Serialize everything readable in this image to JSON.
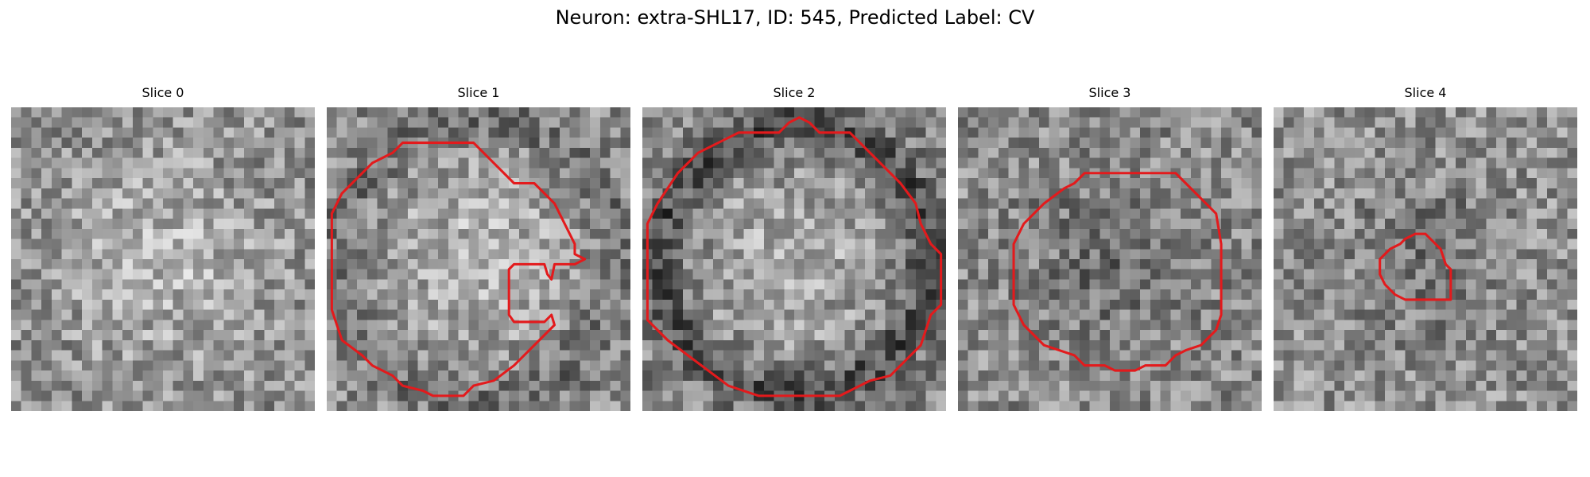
{
  "figure": {
    "title": "Neuron: extra-SHL17, ID: 545, Predicted Label: CV",
    "contour_color": "#e31a1c",
    "colormap": "gray",
    "grid_size": 30
  },
  "slices": [
    {
      "title": "Slice 0",
      "image": {
        "center_brightness": "bright",
        "ring": "none",
        "mean_gray": 0.56
      },
      "contour": []
    },
    {
      "title": "Slice 1",
      "image": {
        "center_brightness": "bright",
        "ring": "faint dark ring",
        "mean_gray": 0.55
      },
      "contour": [
        [
          0.5,
          10.5
        ],
        [
          1.5,
          8.5
        ],
        [
          4.5,
          5.5
        ],
        [
          6.5,
          4.5
        ],
        [
          7.5,
          3.5
        ],
        [
          14.5,
          3.5
        ],
        [
          16.5,
          5.5
        ],
        [
          18.5,
          7.5
        ],
        [
          20.5,
          7.5
        ],
        [
          22.5,
          9.5
        ],
        [
          23.5,
          11.5
        ],
        [
          24.5,
          13.5
        ],
        [
          24.5,
          14.5
        ],
        [
          25.5,
          15.0
        ],
        [
          24.5,
          15.5
        ],
        [
          22.5,
          15.5
        ],
        [
          22.2,
          17.0
        ],
        [
          21.8,
          16.5
        ],
        [
          21.5,
          15.5
        ],
        [
          18.5,
          15.5
        ],
        [
          18.0,
          16.0
        ],
        [
          18.0,
          20.5
        ],
        [
          18.5,
          21.2
        ],
        [
          21.5,
          21.2
        ],
        [
          22.2,
          20.5
        ],
        [
          22.5,
          21.5
        ],
        [
          21.5,
          22.5
        ],
        [
          20.5,
          23.5
        ],
        [
          19.5,
          24.5
        ],
        [
          18.5,
          25.5
        ],
        [
          16.5,
          27.0
        ],
        [
          14.5,
          27.5
        ],
        [
          13.5,
          28.5
        ],
        [
          10.5,
          28.5
        ],
        [
          9.5,
          28.0
        ],
        [
          7.5,
          27.5
        ],
        [
          6.5,
          26.5
        ],
        [
          4.5,
          25.5
        ],
        [
          3.5,
          24.5
        ],
        [
          1.5,
          23.0
        ],
        [
          0.5,
          20.0
        ]
      ]
    },
    {
      "title": "Slice 2",
      "image": {
        "center_brightness": "bright",
        "ring": "dark ring",
        "mean_gray": 0.52
      },
      "contour": [
        [
          0.5,
          11.5
        ],
        [
          1.5,
          9.5
        ],
        [
          3.5,
          6.5
        ],
        [
          5.5,
          4.5
        ],
        [
          7.5,
          3.5
        ],
        [
          9.5,
          2.5
        ],
        [
          13.5,
          2.5
        ],
        [
          14.5,
          1.5
        ],
        [
          15.5,
          1.0
        ],
        [
          16.5,
          1.5
        ],
        [
          17.5,
          2.5
        ],
        [
          20.5,
          2.5
        ],
        [
          21.5,
          3.5
        ],
        [
          22.5,
          4.5
        ],
        [
          24.5,
          6.5
        ],
        [
          25.5,
          7.5
        ],
        [
          27.0,
          9.5
        ],
        [
          27.5,
          11.5
        ],
        [
          28.5,
          13.5
        ],
        [
          29.0,
          14.0
        ],
        [
          29.5,
          14.5
        ],
        [
          29.5,
          19.5
        ],
        [
          28.5,
          20.5
        ],
        [
          27.5,
          23.5
        ],
        [
          25.5,
          25.5
        ],
        [
          24.5,
          26.5
        ],
        [
          22.5,
          27.0
        ],
        [
          21.5,
          27.5
        ],
        [
          20.5,
          28.0
        ],
        [
          19.5,
          28.5
        ],
        [
          11.5,
          28.5
        ],
        [
          8.5,
          27.5
        ],
        [
          6.5,
          26.0
        ],
        [
          4.5,
          24.5
        ],
        [
          2.5,
          23.0
        ],
        [
          0.5,
          21.0
        ]
      ]
    },
    {
      "title": "Slice 3",
      "image": {
        "center_brightness": "dark",
        "ring": "none",
        "mean_gray": 0.55
      },
      "contour": [
        [
          5.5,
          13.5
        ],
        [
          6.5,
          11.5
        ],
        [
          8.5,
          9.5
        ],
        [
          10.5,
          8.0
        ],
        [
          11.5,
          7.5
        ],
        [
          12.5,
          6.5
        ],
        [
          21.5,
          6.5
        ],
        [
          22.5,
          7.5
        ],
        [
          23.5,
          8.5
        ],
        [
          24.5,
          9.5
        ],
        [
          25.5,
          10.5
        ],
        [
          26.0,
          13.5
        ],
        [
          26.0,
          20.5
        ],
        [
          25.5,
          22.0
        ],
        [
          24.0,
          23.5
        ],
        [
          22.5,
          24.0
        ],
        [
          21.5,
          24.5
        ],
        [
          20.5,
          25.5
        ],
        [
          18.5,
          25.5
        ],
        [
          17.5,
          26.0
        ],
        [
          15.5,
          26.0
        ],
        [
          14.5,
          25.5
        ],
        [
          12.5,
          25.5
        ],
        [
          11.5,
          24.5
        ],
        [
          10.0,
          24.0
        ],
        [
          8.5,
          23.5
        ],
        [
          6.5,
          21.5
        ],
        [
          5.5,
          19.5
        ]
      ]
    },
    {
      "title": "Slice 4",
      "image": {
        "center_brightness": "dark",
        "ring": "none",
        "mean_gray": 0.57
      },
      "contour": [
        [
          10.5,
          15.0
        ],
        [
          11.5,
          14.0
        ],
        [
          12.5,
          13.5
        ],
        [
          13.0,
          13.0
        ],
        [
          14.0,
          12.5
        ],
        [
          15.0,
          12.5
        ],
        [
          16.0,
          13.5
        ],
        [
          16.5,
          14.0
        ],
        [
          17.0,
          15.5
        ],
        [
          17.5,
          16.0
        ],
        [
          17.5,
          19.0
        ],
        [
          13.0,
          19.0
        ],
        [
          12.0,
          18.5
        ],
        [
          11.0,
          17.5
        ],
        [
          10.5,
          16.5
        ]
      ]
    }
  ]
}
